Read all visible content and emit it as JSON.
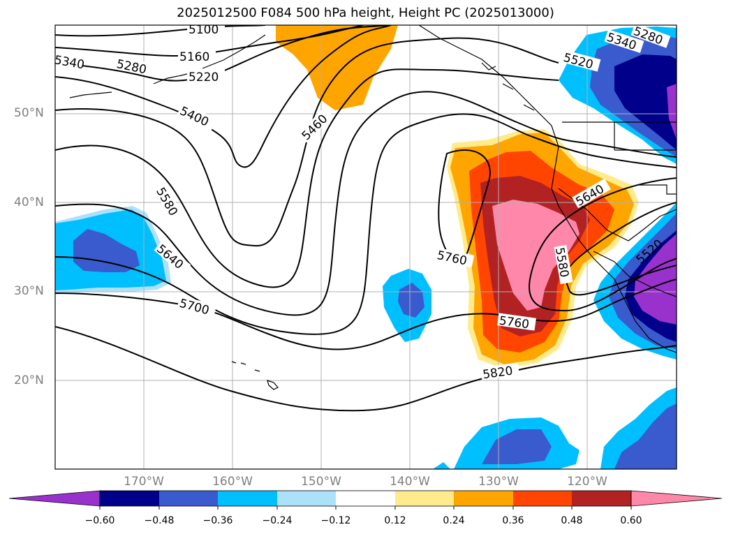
{
  "title": "2025012500 F084 500 hPa height, Height PC (2025013000)",
  "lat_labels": [
    "50°N",
    "40°N",
    "30°N",
    "20°N"
  ],
  "lon_labels": [
    "170°W",
    "160°W",
    "150°W",
    "140°W",
    "130°W",
    "120°W"
  ],
  "colorbar": {
    "ticks": [
      "−0.60",
      "−0.48",
      "−0.36",
      "−0.24",
      "−0.12",
      "0.12",
      "0.24",
      "0.36",
      "0.48",
      "0.60"
    ],
    "colors": [
      "#9932CC",
      "#00008B",
      "#3A5BCD",
      "#00BFFF",
      "#ADE1FA",
      "#FFFFFF",
      "#FFEB8C",
      "#FFA500",
      "#FF4500",
      "#B22222",
      "#FF88AA"
    ]
  },
  "contour_labels": [
    "5100",
    "5160",
    "5220",
    "5280",
    "5340",
    "5400",
    "5460",
    "5580",
    "5640",
    "5700",
    "5760",
    "5760",
    "5820",
    "5520",
    "5280",
    "5340",
    "5640",
    "5580",
    "5520"
  ]
}
